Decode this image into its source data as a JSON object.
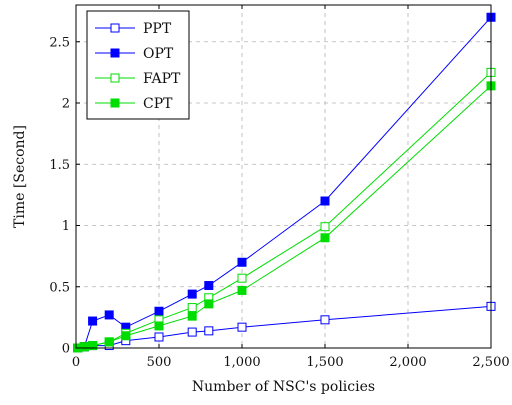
{
  "chart_data": {
    "type": "line",
    "xlabel": "Number of NSC's policies",
    "ylabel": "Time [Second]",
    "xlim": [
      0,
      2500
    ],
    "ylim": [
      0,
      2.8
    ],
    "x_ticks": [
      0,
      500,
      1000,
      1500,
      2000,
      2500
    ],
    "x_tick_labels": [
      "0",
      "500",
      "1,000",
      "1,500",
      "2,000",
      "2,500"
    ],
    "y_ticks": [
      0,
      0.5,
      1,
      1.5,
      2,
      2.5
    ],
    "y_tick_labels": [
      "0",
      "0.5",
      "1",
      "1.5",
      "2",
      "2.5"
    ],
    "grid": true,
    "legend_position": "top-left",
    "x": [
      10,
      50,
      100,
      200,
      300,
      500,
      700,
      800,
      1000,
      1500,
      2500
    ],
    "series": [
      {
        "name": "PPT",
        "color": "#0000ff",
        "marker": "open-square",
        "values": [
          0.0,
          0.01,
          0.02,
          0.02,
          0.06,
          0.09,
          0.13,
          0.14,
          0.17,
          0.23,
          0.34
        ]
      },
      {
        "name": "OPT",
        "color": "#0000ff",
        "marker": "filled-square",
        "values": [
          0.0,
          0.01,
          0.22,
          0.27,
          0.17,
          0.3,
          0.44,
          0.51,
          0.7,
          1.2,
          2.7
        ]
      },
      {
        "name": "FAPT",
        "color": "#00dd00",
        "marker": "open-square",
        "values": [
          0.0,
          0.01,
          0.02,
          0.05,
          0.12,
          0.23,
          0.33,
          0.41,
          0.57,
          0.99,
          2.25
        ]
      },
      {
        "name": "CPT",
        "color": "#00dd00",
        "marker": "filled-square",
        "values": [
          0.0,
          0.01,
          0.02,
          0.05,
          0.1,
          0.18,
          0.26,
          0.36,
          0.47,
          0.9,
          2.14
        ]
      }
    ]
  }
}
